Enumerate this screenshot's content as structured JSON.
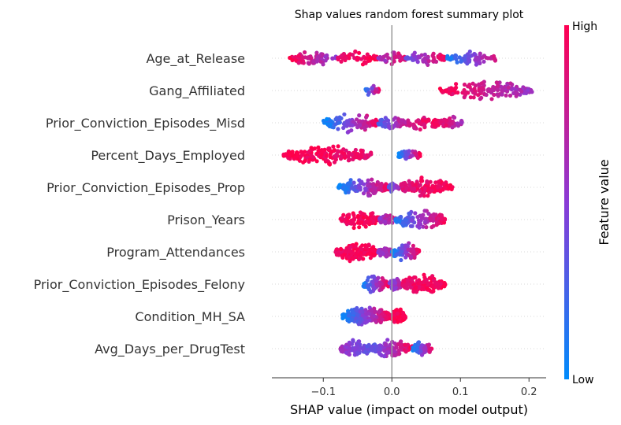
{
  "chart_data": {
    "type": "scatter",
    "subtype": "shap-beeswarm",
    "title": "Shap values random forest summary plot",
    "xlabel": "SHAP value (impact on model output)",
    "xlim": [
      -0.175,
      0.225
    ],
    "xticks": [
      -0.1,
      0.0,
      0.1,
      0.2
    ],
    "xtick_labels": [
      "−0.1",
      "0.0",
      "0.1",
      "0.2"
    ],
    "colorbar": {
      "label": "Feature value",
      "high_label": "High",
      "low_label": "Low",
      "low_color": "#008bfb",
      "high_color": "#ff0052"
    },
    "features": [
      {
        "name": "Age_at_Release",
        "min": -0.152,
        "max": 0.153,
        "segments": [
          [
            -0.152,
            -0.08,
            1.0,
            0.5
          ],
          [
            -0.08,
            -0.02,
            0.9,
            1.0
          ],
          [
            -0.02,
            0.02,
            0.55,
            0.9
          ],
          [
            0.02,
            0.08,
            0.35,
            1.0
          ],
          [
            0.08,
            0.153,
            0.05,
            0.85
          ]
        ]
      },
      {
        "name": "Gang_Affiliated",
        "min": -0.04,
        "max": 0.205,
        "segments": [
          [
            -0.04,
            -0.018,
            0.0,
            1.0
          ],
          [
            0.068,
            0.205,
            1.0,
            0.55
          ]
        ]
      },
      {
        "name": "Prior_Conviction_Episodes_Misd",
        "min": -0.1,
        "max": 0.103,
        "segments": [
          [
            -0.1,
            -0.02,
            0.0,
            1.0
          ],
          [
            -0.02,
            0.02,
            0.25,
            0.8
          ],
          [
            0.02,
            0.07,
            0.75,
            1.0
          ],
          [
            0.07,
            0.103,
            0.95,
            0.6
          ]
        ]
      },
      {
        "name": "Percent_Days_Employed",
        "min": -0.158,
        "max": 0.042,
        "segments": [
          [
            -0.158,
            -0.03,
            1.0,
            0.9
          ],
          [
            0.008,
            0.042,
            0.0,
            1.0
          ]
        ]
      },
      {
        "name": "Prior_Conviction_Episodes_Prop",
        "min": -0.078,
        "max": 0.09,
        "segments": [
          [
            -0.078,
            -0.005,
            0.0,
            1.0
          ],
          [
            -0.005,
            0.012,
            0.3,
            0.7
          ],
          [
            0.012,
            0.09,
            0.85,
            1.0
          ]
        ]
      },
      {
        "name": "Prison_Years",
        "min": -0.075,
        "max": 0.078,
        "segments": [
          [
            -0.075,
            -0.018,
            0.95,
            1.0
          ],
          [
            -0.018,
            0.005,
            0.55,
            0.8
          ],
          [
            0.005,
            0.078,
            0.1,
            1.0
          ]
        ]
      },
      {
        "name": "Program_Attendances",
        "min": -0.082,
        "max": 0.04,
        "segments": [
          [
            -0.082,
            -0.02,
            0.95,
            1.0
          ],
          [
            -0.02,
            0.0,
            0.55,
            0.7
          ],
          [
            0.0,
            0.04,
            0.0,
            1.0
          ]
        ]
      },
      {
        "name": "Prior_Conviction_Episodes_Felony",
        "min": -0.042,
        "max": 0.078,
        "segments": [
          [
            -0.042,
            -0.005,
            0.05,
            1.0
          ],
          [
            -0.005,
            0.015,
            0.4,
            0.7
          ],
          [
            0.015,
            0.078,
            0.9,
            1.0
          ]
        ]
      },
      {
        "name": "Condition_MH_SA",
        "min": -0.072,
        "max": 0.02,
        "segments": [
          [
            -0.072,
            -0.002,
            0.0,
            1.0
          ],
          [
            -0.002,
            0.02,
            1.0,
            1.0
          ]
        ]
      },
      {
        "name": "Avg_Days_per_DrugTest",
        "min": -0.075,
        "max": 0.058,
        "segments": [
          [
            -0.075,
            -0.03,
            0.6,
            0.3
          ],
          [
            -0.03,
            0.03,
            0.3,
            1.0
          ],
          [
            0.03,
            0.058,
            0.0,
            0.9
          ]
        ]
      }
    ]
  }
}
